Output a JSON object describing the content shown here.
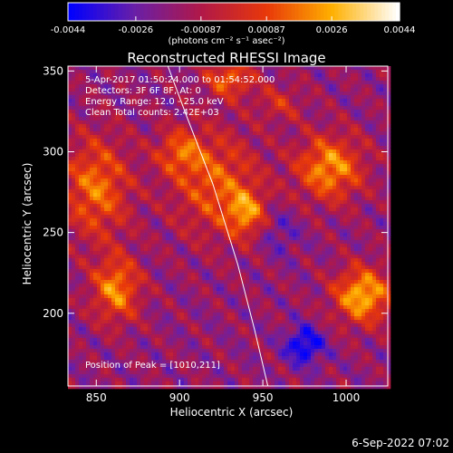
{
  "chart_data": {
    "type": "heatmap",
    "title": "Reconstructed RHESSI Image",
    "xlabel": "Heliocentric X (arcsec)",
    "ylabel": "Heliocentric Y (arcsec)",
    "xlim": [
      833,
      1025
    ],
    "ylim": [
      155,
      353
    ],
    "x_ticks": [
      850,
      900,
      950,
      1000
    ],
    "y_ticks": [
      200,
      250,
      300,
      350
    ],
    "colorbar": {
      "ticks": [
        "-0.0044",
        "-0.0026",
        "-0.00087",
        "0.00087",
        "0.0026",
        "0.0044"
      ],
      "range": [
        -0.0044,
        0.0044
      ],
      "unit_label": "(photons cm⁻² s⁻¹ asec⁻²)",
      "colors": [
        "#0000ff",
        "#6a1fa6",
        "#b01848",
        "#e8380a",
        "#ffb000",
        "#ffffff"
      ]
    },
    "info_lines": [
      "5-Apr-2017 01:50:24.000 to 01:54:52.000",
      "Detectors: 3F 6F 8F, At: 0",
      "Energy Range: 12.0 - 25.0 keV",
      "Clean     Total counts: 2.42E+03"
    ],
    "peak_label": "Position of Peak = [1010,211]",
    "peak": [
      1010,
      211
    ],
    "limb_curve_x": [
      893,
      905,
      920,
      935,
      945,
      953
    ],
    "limb_curve_y": [
      353,
      320,
      280,
      230,
      190,
      155
    ],
    "sources": [
      {
        "x": 850,
        "y": 278,
        "sx": 14,
        "sy": 22,
        "a": 0.0032
      },
      {
        "x": 862,
        "y": 215,
        "sx": 10,
        "sy": 14,
        "a": 0.0036
      },
      {
        "x": 900,
        "y": 300,
        "sx": 10,
        "sy": 10,
        "a": 0.0024
      },
      {
        "x": 922,
        "y": 280,
        "sx": 18,
        "sy": 22,
        "a": 0.0028
      },
      {
        "x": 940,
        "y": 262,
        "sx": 8,
        "sy": 10,
        "a": 0.003
      },
      {
        "x": 930,
        "y": 345,
        "sx": 10,
        "sy": 8,
        "a": 0.003
      },
      {
        "x": 990,
        "y": 290,
        "sx": 14,
        "sy": 14,
        "a": 0.0038
      },
      {
        "x": 1010,
        "y": 211,
        "sx": 12,
        "sy": 12,
        "a": 0.0044
      },
      {
        "x": 960,
        "y": 330,
        "sx": 10,
        "sy": 8,
        "a": 0.0016
      },
      {
        "x": 975,
        "y": 180,
        "sx": 8,
        "sy": 8,
        "a": -0.003
      },
      {
        "x": 960,
        "y": 250,
        "sx": 8,
        "sy": 10,
        "a": -0.0012
      }
    ]
  },
  "footer": {
    "date": "6-Sep-2022 07:02"
  }
}
